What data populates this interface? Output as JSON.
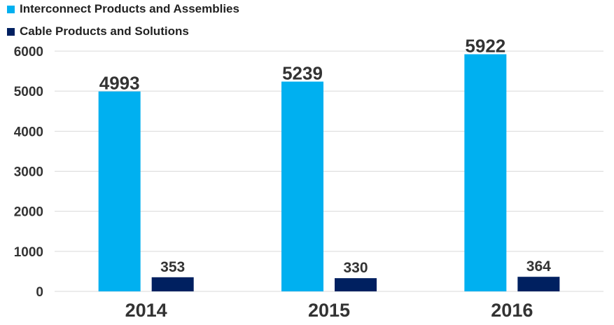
{
  "chart_data": {
    "type": "bar",
    "categories": [
      "2014",
      "2015",
      "2016"
    ],
    "series": [
      {
        "name": "Interconnect Products and Assemblies",
        "values": [
          4993,
          5239,
          5922
        ],
        "color": "#00b0f0"
      },
      {
        "name": "Cable Products and Solutions",
        "values": [
          353,
          330,
          364
        ],
        "color": "#002060"
      }
    ],
    "yticks": [
      0,
      1000,
      2000,
      3000,
      4000,
      5000,
      6000
    ],
    "ylim": [
      0,
      6000
    ],
    "grid": true,
    "legend_position": "top-left",
    "title": "",
    "xlabel": "",
    "ylabel": ""
  }
}
